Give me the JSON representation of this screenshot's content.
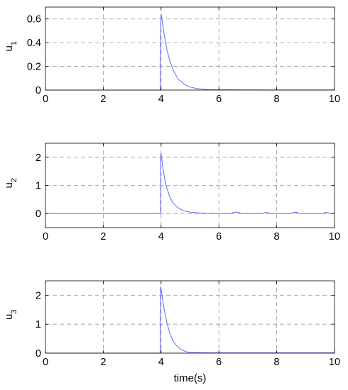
{
  "chart_data": [
    {
      "type": "line",
      "ylabel": "u",
      "ylabel_sub": "1",
      "xlabel": "",
      "xlim": [
        0,
        10
      ],
      "ylim": [
        0,
        0.7
      ],
      "xticks": [
        "0",
        "2",
        "4",
        "6",
        "8",
        "10"
      ],
      "yticks": [
        "0",
        "0.2",
        "0.4",
        "0.6"
      ],
      "ytick_values": [
        0,
        0.2,
        0.4,
        0.6
      ],
      "grid": true,
      "series": [
        {
          "color": "#6666ff",
          "x": [
            0,
            3.97,
            3.98,
            4.0,
            4.02,
            4.05,
            4.1,
            4.15,
            4.2,
            4.3,
            4.4,
            4.5,
            4.6,
            4.7,
            4.8,
            4.9,
            5.0,
            5.2,
            5.4,
            5.6,
            6.0,
            8.0,
            10.0
          ],
          "y": [
            0,
            0,
            0.45,
            0.64,
            0.62,
            0.56,
            0.48,
            0.41,
            0.34,
            0.25,
            0.18,
            0.13,
            0.09,
            0.07,
            0.05,
            0.035,
            0.025,
            0.015,
            0.008,
            0.004,
            0.002,
            0.001,
            0.001
          ]
        }
      ]
    },
    {
      "type": "line",
      "ylabel": "u",
      "ylabel_sub": "2",
      "xlabel": "",
      "xlim": [
        0,
        10
      ],
      "ylim": [
        -0.5,
        2.5
      ],
      "xticks": [
        "0",
        "2",
        "4",
        "6",
        "8",
        "10"
      ],
      "yticks": [
        "0",
        "1",
        "2"
      ],
      "ytick_values": [
        0,
        1,
        2
      ],
      "grid": true,
      "series": [
        {
          "color": "#6666ff",
          "x": [
            0,
            3.98,
            3.99,
            4.02,
            4.05,
            4.1,
            4.15,
            4.2,
            4.3,
            4.4,
            4.5,
            4.6,
            4.7,
            4.8,
            4.9,
            5.0,
            5.2,
            5.4,
            5.6,
            6.0,
            6.4,
            6.5,
            6.6,
            6.7,
            6.8,
            7.5,
            7.6,
            7.7,
            7.8,
            8.5,
            8.6,
            8.7,
            8.8,
            9.6,
            9.7,
            9.8,
            10.0
          ],
          "y": [
            0,
            0,
            2.15,
            2.0,
            1.7,
            1.4,
            1.1,
            0.9,
            0.6,
            0.4,
            0.28,
            0.2,
            0.14,
            0.1,
            0.07,
            0.05,
            0.03,
            0.02,
            0.01,
            0.0,
            0.0,
            0.04,
            0.05,
            0.03,
            0.0,
            0.0,
            0.04,
            0.03,
            0.0,
            0.0,
            0.05,
            0.04,
            0.0,
            0.0,
            0.04,
            0.02,
            0.0
          ]
        }
      ]
    },
    {
      "type": "line",
      "ylabel": "u",
      "ylabel_sub": "3",
      "xlabel": "time(s)",
      "xlim": [
        0,
        10
      ],
      "ylim": [
        0,
        2.5
      ],
      "xticks": [
        "0",
        "2",
        "4",
        "6",
        "8",
        "10"
      ],
      "yticks": [
        "0",
        "1",
        "2"
      ],
      "ytick_values": [
        0,
        1,
        2
      ],
      "grid": true,
      "series": [
        {
          "color": "#6666ff",
          "x": [
            0,
            3.97,
            3.98,
            4.0,
            4.03,
            4.06,
            4.1,
            4.15,
            4.2,
            4.3,
            4.4,
            4.5,
            4.6,
            4.7,
            4.8,
            4.9,
            5.0,
            5.5,
            6.0,
            8.0,
            10.0
          ],
          "y": [
            0,
            0,
            2.3,
            2.2,
            2.0,
            1.8,
            1.55,
            1.3,
            1.05,
            0.7,
            0.45,
            0.3,
            0.2,
            0.12,
            0.08,
            0.04,
            0.02,
            0.01,
            0.01,
            0.01,
            0.01
          ]
        }
      ]
    }
  ]
}
